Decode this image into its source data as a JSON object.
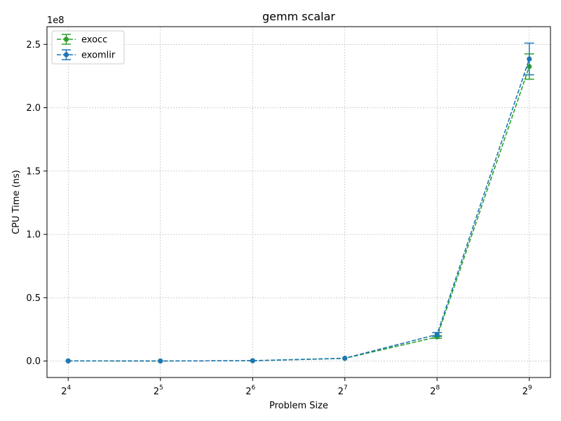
{
  "chart_data": {
    "type": "line",
    "title": "gemm scalar",
    "xlabel": "Problem Size",
    "ylabel": "CPU Time (ns)",
    "y_offset_label": "1e8",
    "x_scale": "log2",
    "x": [
      16,
      32,
      64,
      128,
      256,
      512
    ],
    "x_tick_labels": [
      {
        "base": "2",
        "exp": "4"
      },
      {
        "base": "2",
        "exp": "5"
      },
      {
        "base": "2",
        "exp": "6"
      },
      {
        "base": "2",
        "exp": "7"
      },
      {
        "base": "2",
        "exp": "8"
      },
      {
        "base": "2",
        "exp": "9"
      }
    ],
    "y_ticks": [
      0,
      50000000,
      100000000,
      150000000,
      200000000,
      250000000
    ],
    "y_tick_labels": [
      "0.0",
      "0.5",
      "1.0",
      "1.5",
      "2.0",
      "2.5"
    ],
    "ylim": [
      -13000000,
      264000000
    ],
    "grid": true,
    "legend_position": "top-left",
    "series": [
      {
        "name": "exocc",
        "color": "#2ca02c",
        "values": [
          100000,
          60000,
          250000,
          2100000,
          19000000,
          232500000
        ],
        "errors": [
          0,
          0,
          0,
          0,
          1000000,
          10000000
        ]
      },
      {
        "name": "exomlir",
        "color": "#1f77b4",
        "values": [
          100000,
          60000,
          250000,
          2200000,
          21000000,
          238500000
        ],
        "errors": [
          0,
          0,
          0,
          0,
          1500000,
          12500000
        ]
      }
    ]
  }
}
